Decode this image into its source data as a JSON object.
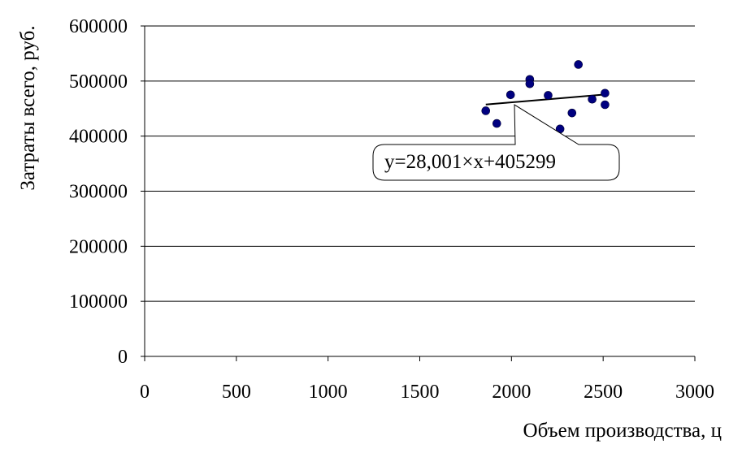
{
  "chart_data": {
    "type": "scatter",
    "title": "",
    "xlabel": "Объем производства, ц",
    "ylabel": "Затраты всего, руб.",
    "xlim": [
      0,
      3000
    ],
    "ylim": [
      0,
      600000
    ],
    "x_ticks": [
      "0",
      "500",
      "1000",
      "1500",
      "2000",
      "2500",
      "3000"
    ],
    "y_ticks": [
      "0",
      "100000",
      "200000",
      "300000",
      "400000",
      "500000",
      "600000"
    ],
    "grid": "horizontal",
    "legend": "none",
    "marker_color": "#000080",
    "series": [
      {
        "points": [
          {
            "x": 1860,
            "y": 446000
          },
          {
            "x": 1920,
            "y": 423000
          },
          {
            "x": 1995,
            "y": 475000
          },
          {
            "x": 2100,
            "y": 503000
          },
          {
            "x": 2100,
            "y": 495000
          },
          {
            "x": 2200,
            "y": 474000
          },
          {
            "x": 2265,
            "y": 413000
          },
          {
            "x": 2330,
            "y": 442000
          },
          {
            "x": 2365,
            "y": 530000
          },
          {
            "x": 2440,
            "y": 467000
          },
          {
            "x": 2510,
            "y": 478000
          },
          {
            "x": 2510,
            "y": 457000
          }
        ]
      }
    ],
    "trendline": {
      "slope": 28.001,
      "intercept": 405299,
      "x_range": [
        1860,
        2510
      ],
      "equation_label": "y=28,001×x+405299"
    }
  }
}
